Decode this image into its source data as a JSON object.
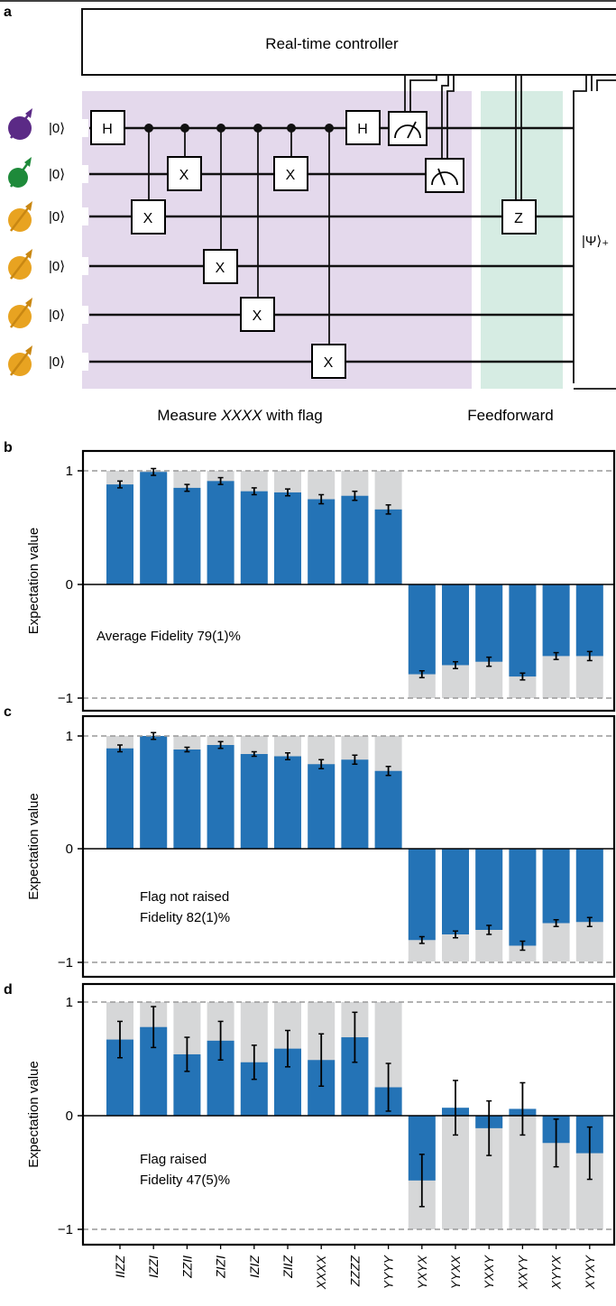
{
  "panel_a": {
    "label": "a",
    "controller": "Real-time controller",
    "init_state": "|0⟩",
    "measure_caption_prefix": "Measure ",
    "measure_caption_italic": "XXXX",
    "measure_caption_suffix": " with flag",
    "feedforward_caption": "Feedforward",
    "output_state": "|Ψ⟩₊",
    "gates": {
      "hadamard": "H",
      "x": "X",
      "z": "Z"
    },
    "colors": {
      "purple_region": "#e4d9ec",
      "green_region": "#d6ece3",
      "qubit_purple": "#5b2a86",
      "qubit_green": "#1e8a3a",
      "qubit_orange": "#e8a321"
    }
  },
  "chart_data": [
    {
      "type": "bar",
      "panel": "b",
      "categories": [
        "IIZZ",
        "IZZI",
        "ZZII",
        "ZIZI",
        "IZIZ",
        "ZIIZ",
        "XXXX",
        "ZZZZ",
        "YYYY",
        "YXYX",
        "YYXX",
        "YXXY",
        "XXYY",
        "XYYX",
        "XYXY"
      ],
      "values": [
        0.88,
        0.99,
        0.85,
        0.91,
        0.82,
        0.81,
        0.75,
        0.78,
        0.66,
        -0.79,
        -0.71,
        -0.68,
        -0.81,
        -0.63,
        -0.63
      ],
      "errors": [
        0.03,
        0.03,
        0.03,
        0.03,
        0.03,
        0.03,
        0.04,
        0.04,
        0.04,
        0.03,
        0.03,
        0.04,
        0.03,
        0.03,
        0.04
      ],
      "ideal": [
        1,
        1,
        1,
        1,
        1,
        1,
        1,
        1,
        1,
        -1,
        -1,
        -1,
        -1,
        -1,
        -1
      ],
      "ylabel": "Expectation value",
      "yticks": [
        "1",
        "0",
        "−1"
      ],
      "ylim": [
        -1.05,
        1.05
      ],
      "annotation": [
        "Average Fidelity 79(1)%"
      ]
    },
    {
      "type": "bar",
      "panel": "c",
      "categories": [
        "IIZZ",
        "IZZI",
        "ZZII",
        "ZIZI",
        "IZIZ",
        "ZIIZ",
        "XXXX",
        "ZZZZ",
        "YYYY",
        "YXYX",
        "YYXX",
        "YXXY",
        "XXYY",
        "XYYX",
        "XYXY"
      ],
      "values": [
        0.89,
        1.0,
        0.88,
        0.92,
        0.84,
        0.82,
        0.75,
        0.79,
        0.69,
        -0.81,
        -0.76,
        -0.72,
        -0.86,
        -0.66,
        -0.65
      ],
      "errors": [
        0.03,
        0.03,
        0.02,
        0.03,
        0.02,
        0.03,
        0.04,
        0.04,
        0.04,
        0.03,
        0.03,
        0.04,
        0.04,
        0.03,
        0.04
      ],
      "ideal": [
        1,
        1,
        1,
        1,
        1,
        1,
        1,
        1,
        1,
        -1,
        -1,
        -1,
        -1,
        -1,
        -1
      ],
      "ylabel": "Expectation value",
      "yticks": [
        "1",
        "0",
        "−1"
      ],
      "ylim": [
        -1.05,
        1.05
      ],
      "annotation": [
        "Flag not raised",
        "Fidelity 82(1)%"
      ]
    },
    {
      "type": "bar",
      "panel": "d",
      "categories": [
        "IIZZ",
        "IZZI",
        "ZZII",
        "ZIZI",
        "IZIZ",
        "ZIIZ",
        "XXXX",
        "ZZZZ",
        "YYYY",
        "YXYX",
        "YYXX",
        "YXXY",
        "XXYY",
        "XYYX",
        "XYXY"
      ],
      "values": [
        0.67,
        0.78,
        0.54,
        0.66,
        0.47,
        0.59,
        0.49,
        0.69,
        0.25,
        -0.57,
        0.07,
        -0.11,
        0.06,
        -0.24,
        -0.33
      ],
      "errors": [
        0.16,
        0.18,
        0.15,
        0.17,
        0.15,
        0.16,
        0.23,
        0.22,
        0.21,
        0.23,
        0.24,
        0.24,
        0.23,
        0.21,
        0.23
      ],
      "ideal": [
        1,
        1,
        1,
        1,
        1,
        1,
        1,
        1,
        1,
        -1,
        -1,
        -1,
        -1,
        -1,
        -1
      ],
      "ylabel": "Expectation value",
      "yticks": [
        "1",
        "0",
        "−1"
      ],
      "ylim": [
        -1.05,
        1.05
      ],
      "annotation": [
        "Flag raised",
        "Fidelity 47(5)%"
      ]
    }
  ],
  "colors": {
    "bar": "#2473b6",
    "ideal_bar": "#d6d7d8",
    "dash": "#999999",
    "axis": "#000000"
  }
}
